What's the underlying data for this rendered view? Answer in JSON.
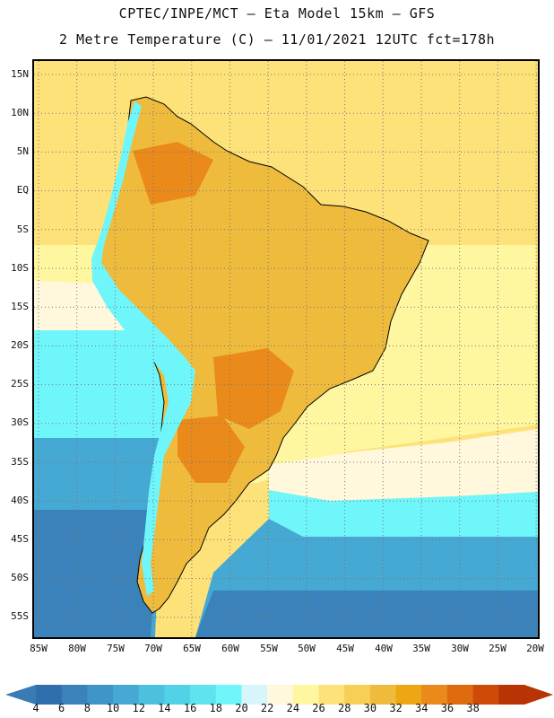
{
  "header": {
    "line1": "CPTEC/INPE/MCT –  Eta Model 15km – GFS",
    "line2": "2 Metre Temperature (C) – 11/01/2021 12UTC fct=178h"
  },
  "axes": {
    "latitude_labels": [
      "15N",
      "10N",
      "5N",
      "EQ",
      "5S",
      "10S",
      "15S",
      "20S",
      "25S",
      "30S",
      "35S",
      "40S",
      "45S",
      "50S",
      "55S"
    ],
    "longitude_labels": [
      "85W",
      "80W",
      "75W",
      "70W",
      "65W",
      "60W",
      "55W",
      "50W",
      "45W",
      "40W",
      "35W",
      "30W",
      "25W",
      "20W"
    ]
  },
  "colorbar": {
    "labels": [
      "4",
      "6",
      "8",
      "10",
      "12",
      "14",
      "16",
      "18",
      "20",
      "22",
      "24",
      "26",
      "28",
      "30",
      "32",
      "34",
      "36",
      "38"
    ],
    "colors": [
      "#2f6fad",
      "#3a82b9",
      "#3f95c8",
      "#45a9d4",
      "#4cc0df",
      "#52d2e6",
      "#5fe3ef",
      "#6ff6fb",
      "#d6f6fb",
      "#fff8dc",
      "#fff6a0",
      "#fde27a",
      "#f7cf55",
      "#efbb3d",
      "#eea612",
      "#e98a1b",
      "#e06a0e",
      "#cf4a07",
      "#b83405"
    ],
    "end_left_color": "#3a7ab5",
    "end_right_color": "#b83405"
  },
  "map_colors": {
    "ocean_tropical": "#fde27a",
    "ocean_warm": "#fff6a0",
    "ocean_mild": "#fff8dc",
    "ocean_cool": "#6ff6fb",
    "ocean_cold": "#45a9d4",
    "ocean_colder": "#3a82b9",
    "land": "#efbb3d",
    "land_hot": "#e98a1b",
    "andes": "#6ff6fb"
  }
}
